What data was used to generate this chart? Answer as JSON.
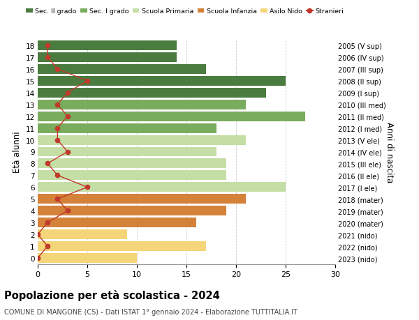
{
  "ages": [
    18,
    17,
    16,
    15,
    14,
    13,
    12,
    11,
    10,
    9,
    8,
    7,
    6,
    5,
    4,
    3,
    2,
    1,
    0
  ],
  "right_labels": [
    "2005 (V sup)",
    "2006 (IV sup)",
    "2007 (III sup)",
    "2008 (II sup)",
    "2009 (I sup)",
    "2010 (III med)",
    "2011 (II med)",
    "2012 (I med)",
    "2013 (V ele)",
    "2014 (IV ele)",
    "2015 (III ele)",
    "2016 (II ele)",
    "2017 (I ele)",
    "2018 (mater)",
    "2019 (mater)",
    "2020 (mater)",
    "2021 (nido)",
    "2022 (nido)",
    "2023 (nido)"
  ],
  "bar_values": [
    14,
    14,
    17,
    25,
    23,
    21,
    27,
    18,
    21,
    18,
    19,
    19,
    25,
    21,
    19,
    16,
    9,
    17,
    10
  ],
  "bar_colors": [
    "#4a7c3f",
    "#4a7c3f",
    "#4a7c3f",
    "#4a7c3f",
    "#4a7c3f",
    "#7aac5e",
    "#7aac5e",
    "#7aac5e",
    "#c5dea5",
    "#c5dea5",
    "#c5dea5",
    "#c5dea5",
    "#c5dea5",
    "#d4813a",
    "#d4813a",
    "#d4813a",
    "#f5d57a",
    "#f5d57a",
    "#f5d57a"
  ],
  "stranieri_values": [
    1,
    1,
    2,
    5,
    3,
    2,
    3,
    2,
    2,
    3,
    1,
    2,
    5,
    2,
    3,
    1,
    0,
    1,
    0
  ],
  "stranieri_color": "#c0392b",
  "legend_labels": [
    "Sec. II grado",
    "Sec. I grado",
    "Scuola Primaria",
    "Scuola Infanzia",
    "Asilo Nido",
    "Stranieri"
  ],
  "legend_colors": [
    "#4a7c3f",
    "#7aac5e",
    "#c5dea5",
    "#d4813a",
    "#f5d57a",
    "#c0392b"
  ],
  "title": "Popolazione per età scolastica - 2024",
  "subtitle": "COMUNE DI MANGONE (CS) - Dati ISTAT 1° gennaio 2024 - Elaborazione TUTTITALIA.IT",
  "ylabel_left": "Età alunni",
  "ylabel_right": "Anni di nascita",
  "xlim": [
    0,
    30
  ],
  "xticks": [
    0,
    5,
    10,
    15,
    20,
    25,
    30
  ],
  "ylim": [
    -0.5,
    18.5
  ],
  "background_color": "#ffffff",
  "grid_color": "#cccccc"
}
